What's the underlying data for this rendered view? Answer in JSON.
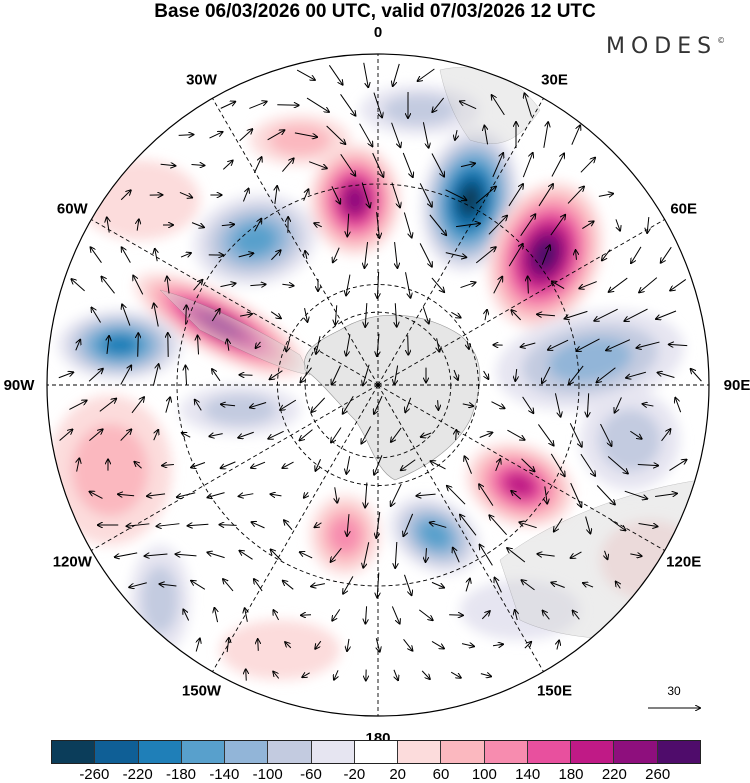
{
  "title": "Base 06/03/2026 00 UTC, valid 07/03/2026 12 UTC",
  "logo": "MODES",
  "logo_mark": "©",
  "map": {
    "projection": "south-polar-stereographic",
    "longitude_labels": [
      "0",
      "30E",
      "60E",
      "90E",
      "120E",
      "150E",
      "180",
      "150W",
      "120W",
      "90W",
      "60W",
      "30W"
    ],
    "reference_vector_label": "30",
    "icons": [
      "reference-vector-arrow-icon"
    ]
  },
  "colorbar": {
    "colors": [
      "#0b3d5a",
      "#0f5f96",
      "#1f7fb8",
      "#58a0cc",
      "#92b5d8",
      "#c3cbe0",
      "#e6e5f1",
      "#ffffff",
      "#fcdcdc",
      "#fbb8bf",
      "#f78caf",
      "#e8509e",
      "#c01a86",
      "#8e0f7d",
      "#4f0c6b"
    ],
    "ticks": [
      "-260",
      "-220",
      "-180",
      "-140",
      "-100",
      "-60",
      "-20",
      "20",
      "60",
      "100",
      "140",
      "180",
      "220",
      "260"
    ]
  }
}
